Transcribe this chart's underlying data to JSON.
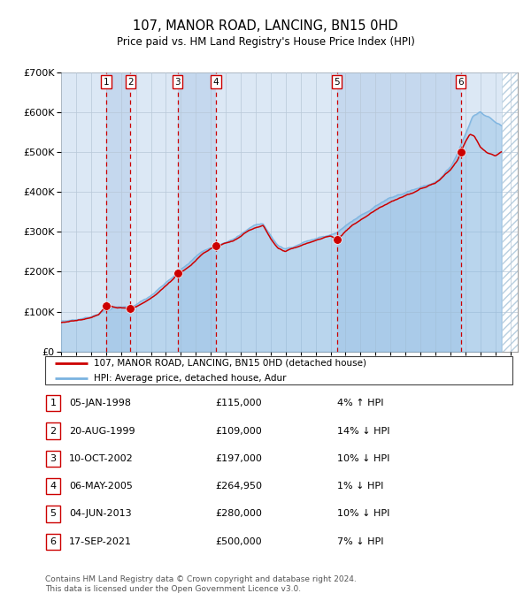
{
  "title": "107, MANOR ROAD, LANCING, BN15 0HD",
  "subtitle": "Price paid vs. HM Land Registry's House Price Index (HPI)",
  "sales": [
    {
      "num": 1,
      "date": "05-JAN-1998",
      "year": 1998.02,
      "price": 115000,
      "pct": "4% ↑ HPI"
    },
    {
      "num": 2,
      "date": "20-AUG-1999",
      "year": 1999.63,
      "price": 109000,
      "pct": "14% ↓ HPI"
    },
    {
      "num": 3,
      "date": "10-OCT-2002",
      "year": 2002.78,
      "price": 197000,
      "pct": "10% ↓ HPI"
    },
    {
      "num": 4,
      "date": "06-MAY-2005",
      "year": 2005.34,
      "price": 264950,
      "pct": "1% ↓ HPI"
    },
    {
      "num": 5,
      "date": "04-JUN-2013",
      "year": 2013.42,
      "price": 280000,
      "pct": "10% ↓ HPI"
    },
    {
      "num": 6,
      "date": "17-SEP-2021",
      "year": 2021.71,
      "price": 500000,
      "pct": "7% ↓ HPI"
    }
  ],
  "hpi_color": "#7ab3e0",
  "price_color": "#cc0000",
  "sale_marker_color": "#cc0000",
  "bg_color_light": "#dce8f5",
  "bg_color_dark": "#c5d8ee",
  "hatch_color": "#b8cfe0",
  "vline_color": "#cc0000",
  "ylim": [
    0,
    700000
  ],
  "yticks": [
    0,
    100000,
    200000,
    300000,
    400000,
    500000,
    600000,
    700000
  ],
  "xlim_start": 1995.0,
  "xlim_end": 2025.5,
  "hatch_start": 2024.42,
  "footer": "Contains HM Land Registry data © Crown copyright and database right 2024.\nThis data is licensed under the Open Government Licence v3.0.",
  "legend_label_price": "107, MANOR ROAD, LANCING, BN15 0HD (detached house)",
  "legend_label_hpi": "HPI: Average price, detached house, Adur",
  "hpi_anchors": [
    [
      1995.0,
      76000
    ],
    [
      1995.5,
      78000
    ],
    [
      1996.0,
      80000
    ],
    [
      1996.5,
      83000
    ],
    [
      1997.0,
      88000
    ],
    [
      1997.5,
      95000
    ],
    [
      1998.0,
      103000
    ],
    [
      1998.5,
      110000
    ],
    [
      1999.0,
      112000
    ],
    [
      1999.5,
      113000
    ],
    [
      2000.0,
      118000
    ],
    [
      2000.5,
      128000
    ],
    [
      2001.0,
      140000
    ],
    [
      2001.5,
      155000
    ],
    [
      2002.0,
      172000
    ],
    [
      2002.5,
      188000
    ],
    [
      2003.0,
      205000
    ],
    [
      2003.5,
      220000
    ],
    [
      2004.0,
      238000
    ],
    [
      2004.5,
      252000
    ],
    [
      2005.0,
      262000
    ],
    [
      2005.5,
      268000
    ],
    [
      2006.0,
      275000
    ],
    [
      2006.5,
      280000
    ],
    [
      2007.0,
      293000
    ],
    [
      2007.5,
      308000
    ],
    [
      2008.0,
      318000
    ],
    [
      2008.5,
      320000
    ],
    [
      2009.0,
      290000
    ],
    [
      2009.5,
      265000
    ],
    [
      2010.0,
      258000
    ],
    [
      2010.5,
      262000
    ],
    [
      2011.0,
      270000
    ],
    [
      2011.5,
      278000
    ],
    [
      2012.0,
      282000
    ],
    [
      2012.5,
      288000
    ],
    [
      2013.0,
      292000
    ],
    [
      2013.5,
      300000
    ],
    [
      2014.0,
      315000
    ],
    [
      2014.5,
      328000
    ],
    [
      2015.0,
      340000
    ],
    [
      2015.5,
      352000
    ],
    [
      2016.0,
      365000
    ],
    [
      2016.5,
      375000
    ],
    [
      2017.0,
      385000
    ],
    [
      2017.5,
      392000
    ],
    [
      2018.0,
      398000
    ],
    [
      2018.5,
      405000
    ],
    [
      2019.0,
      412000
    ],
    [
      2019.5,
      418000
    ],
    [
      2020.0,
      425000
    ],
    [
      2020.5,
      440000
    ],
    [
      2021.0,
      462000
    ],
    [
      2021.5,
      498000
    ],
    [
      2022.0,
      545000
    ],
    [
      2022.5,
      590000
    ],
    [
      2023.0,
      600000
    ],
    [
      2023.5,
      590000
    ],
    [
      2024.0,
      575000
    ],
    [
      2024.4,
      565000
    ]
  ],
  "price_anchors": [
    [
      1995.0,
      73000
    ],
    [
      1995.5,
      75000
    ],
    [
      1996.0,
      78000
    ],
    [
      1996.5,
      82000
    ],
    [
      1997.0,
      86000
    ],
    [
      1997.5,
      92000
    ],
    [
      1998.02,
      115000
    ],
    [
      1998.5,
      112000
    ],
    [
      1999.0,
      110000
    ],
    [
      1999.63,
      109000
    ],
    [
      2000.0,
      112000
    ],
    [
      2000.5,
      122000
    ],
    [
      2001.0,
      133000
    ],
    [
      2001.5,
      148000
    ],
    [
      2002.0,
      165000
    ],
    [
      2002.5,
      182000
    ],
    [
      2002.78,
      197000
    ],
    [
      2003.0,
      200000
    ],
    [
      2003.5,
      212000
    ],
    [
      2004.0,
      228000
    ],
    [
      2004.5,
      246000
    ],
    [
      2005.0,
      258000
    ],
    [
      2005.34,
      264950
    ],
    [
      2005.7,
      268000
    ],
    [
      2006.0,
      272000
    ],
    [
      2006.5,
      278000
    ],
    [
      2007.0,
      288000
    ],
    [
      2007.5,
      302000
    ],
    [
      2008.0,
      310000
    ],
    [
      2008.5,
      315000
    ],
    [
      2009.0,
      282000
    ],
    [
      2009.5,
      258000
    ],
    [
      2010.0,
      252000
    ],
    [
      2010.5,
      258000
    ],
    [
      2011.0,
      265000
    ],
    [
      2011.5,
      272000
    ],
    [
      2012.0,
      278000
    ],
    [
      2012.5,
      285000
    ],
    [
      2013.0,
      290000
    ],
    [
      2013.42,
      280000
    ],
    [
      2013.8,
      292000
    ],
    [
      2014.0,
      302000
    ],
    [
      2014.5,
      318000
    ],
    [
      2015.0,
      330000
    ],
    [
      2015.5,
      342000
    ],
    [
      2016.0,
      355000
    ],
    [
      2016.5,
      365000
    ],
    [
      2017.0,
      375000
    ],
    [
      2017.5,
      382000
    ],
    [
      2018.0,
      390000
    ],
    [
      2018.5,
      398000
    ],
    [
      2019.0,
      408000
    ],
    [
      2019.5,
      415000
    ],
    [
      2020.0,
      422000
    ],
    [
      2020.5,
      438000
    ],
    [
      2021.0,
      455000
    ],
    [
      2021.5,
      480000
    ],
    [
      2021.71,
      500000
    ],
    [
      2022.0,
      525000
    ],
    [
      2022.3,
      545000
    ],
    [
      2022.6,
      540000
    ],
    [
      2023.0,
      512000
    ],
    [
      2023.5,
      498000
    ],
    [
      2024.0,
      490000
    ],
    [
      2024.4,
      500000
    ]
  ]
}
